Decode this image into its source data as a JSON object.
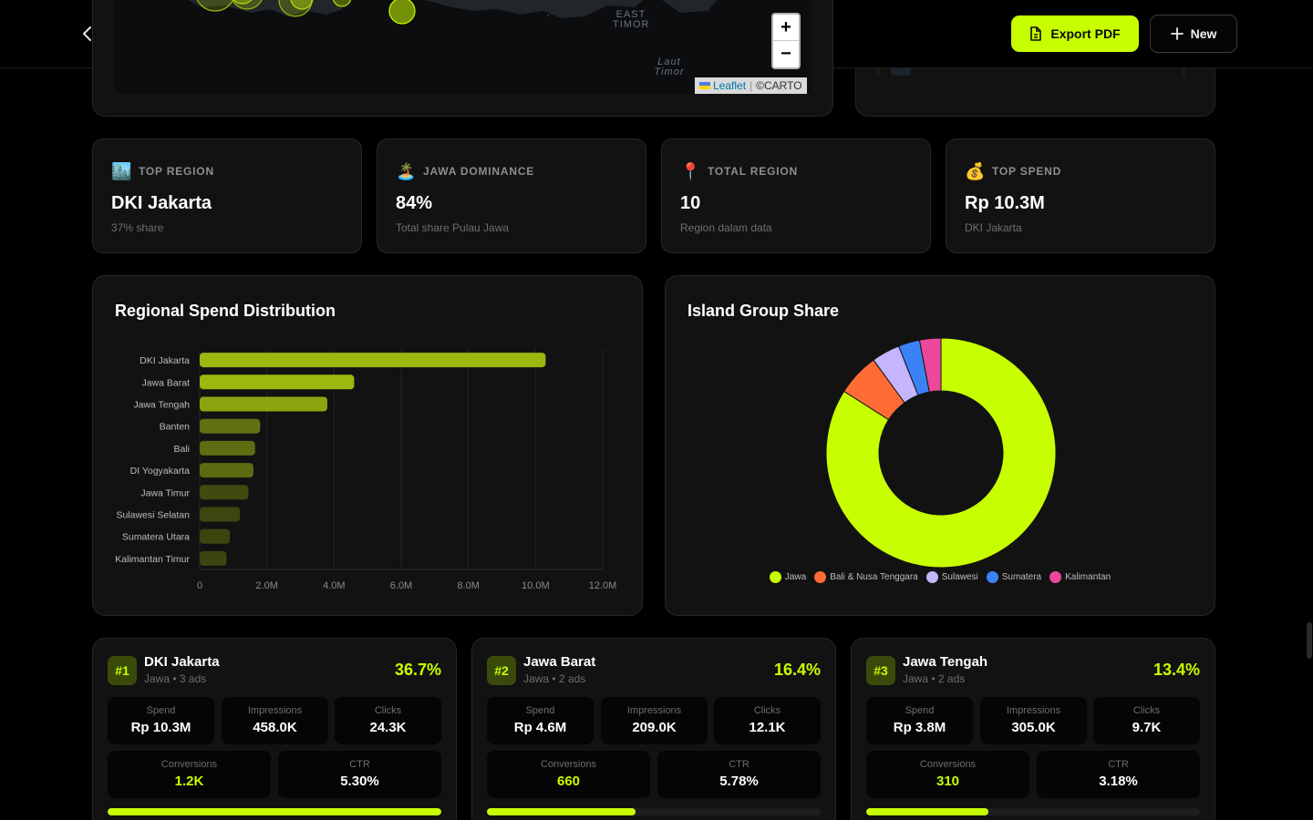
{
  "header": {
    "export_label": "Export PDF",
    "new_label": "New"
  },
  "map": {
    "labels": [
      {
        "line1": "EAST",
        "line2": "TIMOR"
      },
      {
        "line1": "Laut",
        "line2": "Timor"
      }
    ],
    "zoom_in": "+",
    "zoom_out": "−",
    "attribution_leaflet": "Leaflet",
    "attribution_carto": "©CARTO"
  },
  "stats": [
    {
      "emoji": "🏙️",
      "label": "TOP REGION",
      "value": "DKI Jakarta",
      "sub": "37% share"
    },
    {
      "emoji": "🏝️",
      "label": "JAWA DOMINANCE",
      "value": "84%",
      "sub": "Total share Pulau Jawa"
    },
    {
      "emoji": "📍",
      "label": "TOTAL REGION",
      "value": "10",
      "sub": "Region dalam data"
    },
    {
      "emoji": "💰",
      "label": "TOP SPEND",
      "value": "Rp 10.3M",
      "sub": "DKI Jakarta"
    }
  ],
  "spend_chart": {
    "title": "Regional Spend Distribution"
  },
  "share_chart": {
    "title": "Island Group Share"
  },
  "chart_data": [
    {
      "type": "bar",
      "orientation": "horizontal",
      "title": "Regional Spend Distribution",
      "categories": [
        "DKI Jakarta",
        "Jawa Barat",
        "Jawa Tengah",
        "Banten",
        "Bali",
        "DI Yogyakarta",
        "Jawa Timur",
        "Sulawesi Selatan",
        "Sumatera Utara",
        "Kalimantan Timur"
      ],
      "values": [
        10300000,
        4600000,
        3800000,
        1800000,
        1650000,
        1600000,
        1450000,
        1200000,
        900000,
        800000
      ],
      "xlim": [
        0,
        12000000
      ],
      "xticks": [
        "0",
        "2.0M",
        "4.0M",
        "6.0M",
        "8.0M",
        "10.0M",
        "12.0M"
      ],
      "grid": true,
      "colors": [
        "#9ab80e",
        "#9ab80e",
        "#8aa50f",
        "#5f7112",
        "#5c6d12",
        "#5a6b12",
        "#3f4b10",
        "#3c470f",
        "#3b460f",
        "#3a450f"
      ]
    },
    {
      "type": "pie",
      "donut": true,
      "title": "Island Group Share",
      "series": [
        {
          "name": "Jawa",
          "value": 84,
          "color": "#c8ff00"
        },
        {
          "name": "Bali & Nusa Tenggara",
          "value": 6,
          "color": "#ff6b35"
        },
        {
          "name": "Sulawesi",
          "value": 4,
          "color": "#c4b5fd"
        },
        {
          "name": "Sumatera",
          "value": 3,
          "color": "#3b82f6"
        },
        {
          "name": "Kalimantan",
          "value": 3,
          "color": "#ec4899"
        }
      ],
      "legend": "bottom"
    }
  ],
  "regions": [
    {
      "rank": "#1",
      "name": "DKI Jakarta",
      "meta": "Jawa • 3 ads",
      "share": "36.7%",
      "spend_label": "Spend",
      "spend": "Rp 10.3M",
      "impr_label": "Impressions",
      "impr": "458.0K",
      "clicks_label": "Clicks",
      "clicks": "24.3K",
      "conv_label": "Conversions",
      "conv": "1.2K",
      "ctr_label": "CTR",
      "ctr": "5.30%",
      "progress": 1.0
    },
    {
      "rank": "#2",
      "name": "Jawa Barat",
      "meta": "Jawa • 2 ads",
      "share": "16.4%",
      "spend_label": "Spend",
      "spend": "Rp 4.6M",
      "impr_label": "Impressions",
      "impr": "209.0K",
      "clicks_label": "Clicks",
      "clicks": "12.1K",
      "conv_label": "Conversions",
      "conv": "660",
      "ctr_label": "CTR",
      "ctr": "5.78%",
      "progress": 0.446
    },
    {
      "rank": "#3",
      "name": "Jawa Tengah",
      "meta": "Jawa • 2 ads",
      "share": "13.4%",
      "spend_label": "Spend",
      "spend": "Rp 3.8M",
      "impr_label": "Impressions",
      "impr": "305.0K",
      "clicks_label": "Clicks",
      "clicks": "9.7K",
      "conv_label": "Conversions",
      "conv": "310",
      "ctr_label": "CTR",
      "ctr": "3.18%",
      "progress": 0.365
    }
  ]
}
